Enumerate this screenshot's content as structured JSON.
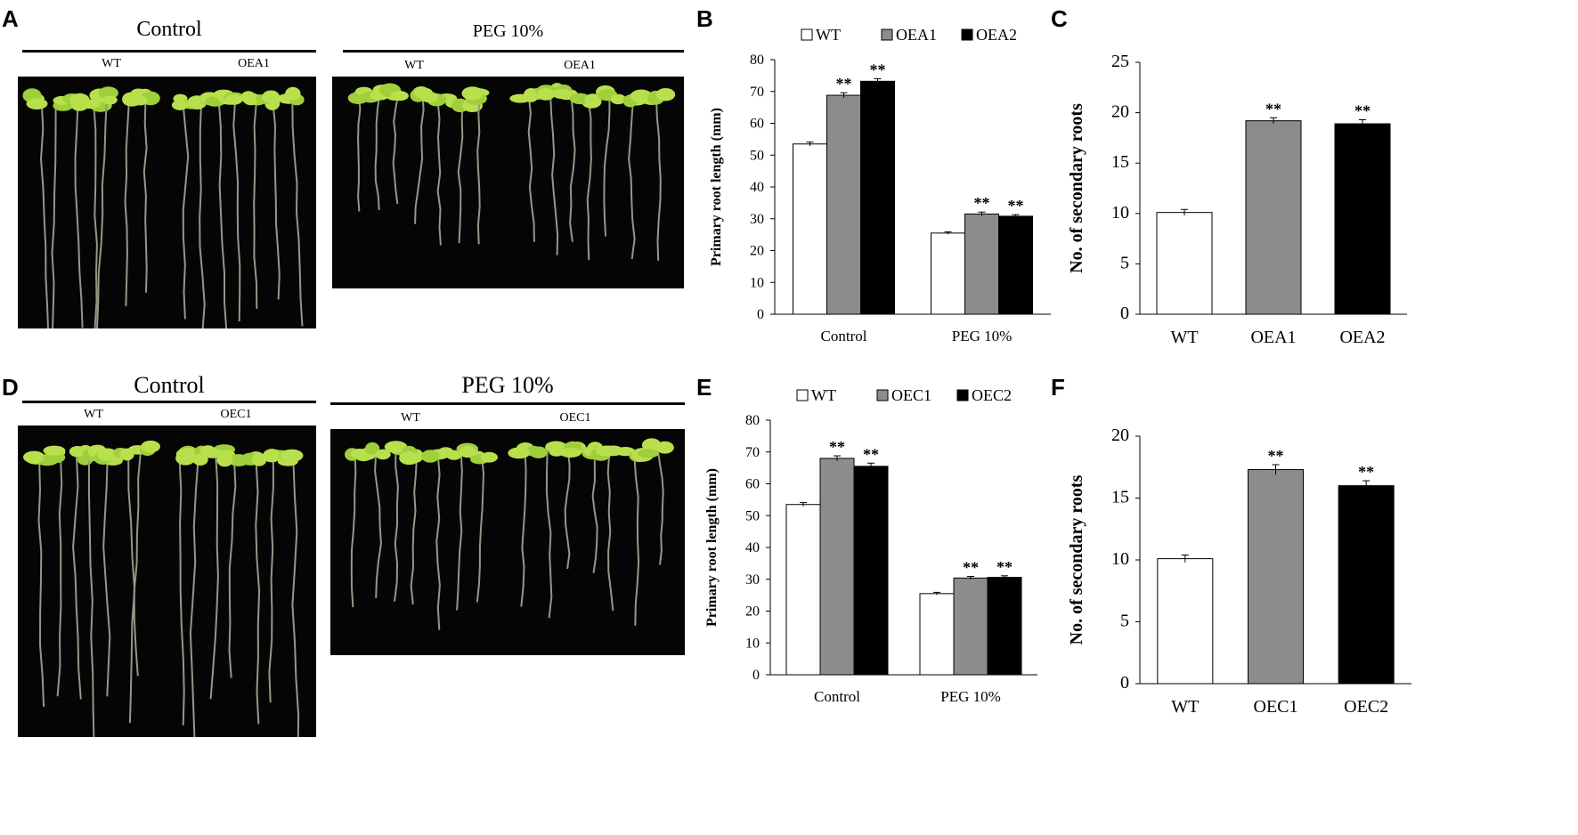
{
  "panels": {
    "A": "A",
    "B": "B",
    "C": "C",
    "D": "D",
    "E": "E",
    "F": "F"
  },
  "photos": {
    "A_left": {
      "title": "Control",
      "labels": [
        "WT",
        "OEA1"
      ]
    },
    "A_right": {
      "title": "PEG 10%",
      "labels": [
        "WT",
        "OEA1"
      ]
    },
    "D_left": {
      "title": "Control",
      "labels": [
        "WT",
        "OEC1"
      ]
    },
    "D_right": {
      "title": "PEG 10%",
      "labels": [
        "WT",
        "OEC1"
      ]
    }
  },
  "significance_mark": "**",
  "chart_data": [
    {
      "panel": "B",
      "type": "bar",
      "categories": [
        "Control",
        "PEG 10%"
      ],
      "series": [
        {
          "name": "WT",
          "values": [
            53.5,
            25.5
          ],
          "errors": [
            0.6,
            0.4
          ],
          "sig": [
            false,
            false
          ],
          "color": "#ffffff"
        },
        {
          "name": "OEA1",
          "values": [
            68.8,
            31.5
          ],
          "errors": [
            0.8,
            0.6
          ],
          "sig": [
            true,
            true
          ],
          "color": "#8c8c8c"
        },
        {
          "name": "OEA2",
          "values": [
            73.2,
            30.8
          ],
          "errors": [
            0.8,
            0.5
          ],
          "sig": [
            true,
            true
          ],
          "color": "#000000"
        }
      ],
      "ylabel": "Primary root length (mm)",
      "ylim": [
        0,
        80
      ],
      "yticks": [
        0,
        10,
        20,
        30,
        40,
        50,
        60,
        70,
        80
      ],
      "legend": "top"
    },
    {
      "panel": "C",
      "type": "bar",
      "categories": [
        "WT",
        "OEA1",
        "OEA2"
      ],
      "values": [
        10.1,
        19.2,
        18.9
      ],
      "errors": [
        0.3,
        0.3,
        0.4
      ],
      "sig": [
        false,
        true,
        true
      ],
      "colors": [
        "#ffffff",
        "#8c8c8c",
        "#000000"
      ],
      "ylabel": "No. of secondary roots",
      "ylim": [
        0,
        25
      ],
      "yticks": [
        0,
        5,
        10,
        15,
        20,
        25
      ]
    },
    {
      "panel": "E",
      "type": "bar",
      "categories": [
        "Control",
        "PEG 10%"
      ],
      "series": [
        {
          "name": "WT",
          "values": [
            53.5,
            25.5
          ],
          "errors": [
            0.6,
            0.4
          ],
          "sig": [
            false,
            false
          ],
          "color": "#ffffff"
        },
        {
          "name": "OEC1",
          "values": [
            68.0,
            30.4
          ],
          "errors": [
            0.8,
            0.5
          ],
          "sig": [
            true,
            true
          ],
          "color": "#8c8c8c"
        },
        {
          "name": "OEC2",
          "values": [
            65.5,
            30.6
          ],
          "errors": [
            1.0,
            0.5
          ],
          "sig": [
            true,
            true
          ],
          "color": "#000000"
        }
      ],
      "ylabel": "Primary root length (mm)",
      "ylim": [
        0,
        80
      ],
      "yticks": [
        0,
        10,
        20,
        30,
        40,
        50,
        60,
        70,
        80
      ],
      "legend": "top"
    },
    {
      "panel": "F",
      "type": "bar",
      "categories": [
        "WT",
        "OEC1",
        "OEC2"
      ],
      "values": [
        10.1,
        17.3,
        16.0
      ],
      "errors": [
        0.3,
        0.4,
        0.4
      ],
      "sig": [
        false,
        true,
        true
      ],
      "colors": [
        "#ffffff",
        "#8c8c8c",
        "#000000"
      ],
      "ylabel": "No. of secondary roots",
      "ylim": [
        0,
        20
      ],
      "yticks": [
        0,
        5,
        10,
        15,
        20
      ]
    }
  ]
}
